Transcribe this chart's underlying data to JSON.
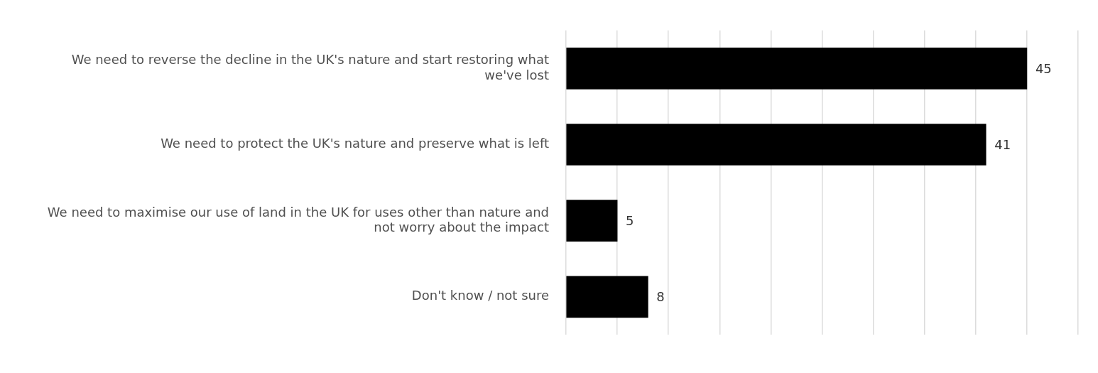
{
  "chart_data": {
    "type": "bar",
    "orientation": "horizontal",
    "categories": [
      "We need to reverse the decline in the UK's nature and start restoring what we've lost",
      "We need to protect the UK's nature and preserve what is left",
      "We need to maximise our use of land in the UK for uses other than nature and not worry about the impact",
      "Don't know / not sure"
    ],
    "values": [
      45,
      41,
      5,
      8
    ],
    "color": "#000000",
    "xlim": [
      0,
      50
    ],
    "xticks": [
      {
        "value": 0,
        "label": null
      },
      {
        "value": 5,
        "label": null
      },
      {
        "value": 10,
        "label": null
      },
      {
        "value": 15,
        "label": null
      },
      {
        "value": 20,
        "label": null
      },
      {
        "value": 25,
        "label": null
      },
      {
        "value": 30,
        "label": null
      },
      {
        "value": 35,
        "label": null
      },
      {
        "value": 40,
        "label": null
      },
      {
        "value": 45,
        "label": null
      },
      {
        "value": 50,
        "label": null
      }
    ],
    "grid": "x",
    "tick_labels": "y",
    "data_labels": true,
    "legend": false
  }
}
